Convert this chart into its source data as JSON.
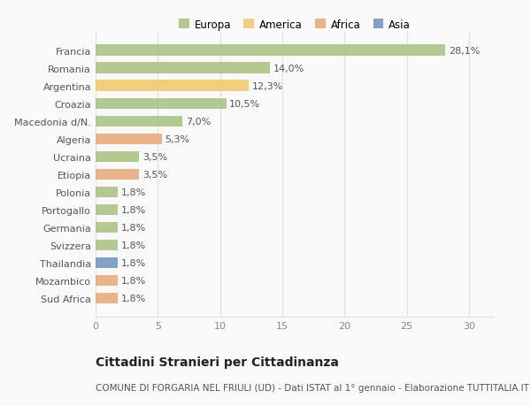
{
  "countries": [
    "Francia",
    "Romania",
    "Argentina",
    "Croazia",
    "Macedonia d/N.",
    "Algeria",
    "Ucraina",
    "Etiopia",
    "Polonia",
    "Portogallo",
    "Germania",
    "Svizzera",
    "Thailandia",
    "Mozambico",
    "Sud Africa"
  ],
  "values": [
    28.1,
    14.0,
    12.3,
    10.5,
    7.0,
    5.3,
    3.5,
    3.5,
    1.8,
    1.8,
    1.8,
    1.8,
    1.8,
    1.8,
    1.8
  ],
  "labels": [
    "28,1%",
    "14,0%",
    "12,3%",
    "10,5%",
    "7,0%",
    "5,3%",
    "3,5%",
    "3,5%",
    "1,8%",
    "1,8%",
    "1,8%",
    "1,8%",
    "1,8%",
    "1,8%",
    "1,8%"
  ],
  "categories": [
    "Europa",
    "America",
    "Africa",
    "Asia"
  ],
  "bar_colors": [
    "#a8c080",
    "#a8c080",
    "#f0c868",
    "#a8c080",
    "#a8c080",
    "#e8a878",
    "#a8c080",
    "#e8a878",
    "#a8c080",
    "#a8c080",
    "#a8c080",
    "#a8c080",
    "#7090c0",
    "#e8a878",
    "#e8a878"
  ],
  "legend_colors": [
    "#a8c080",
    "#f0c868",
    "#e8a878",
    "#7090c0"
  ],
  "xlim": [
    0,
    32
  ],
  "xticks": [
    0,
    5,
    10,
    15,
    20,
    25,
    30
  ],
  "title": "Cittadini Stranieri per Cittadinanza",
  "subtitle": "COMUNE DI FORGARIA NEL FRIULI (UD) - Dati ISTAT al 1° gennaio - Elaborazione TUTTITALIA.IT",
  "bg_color": "#f9f9f9",
  "grid_color": "#e0e0e0",
  "label_fontsize": 8,
  "value_fontsize": 8,
  "title_fontsize": 10,
  "subtitle_fontsize": 7.5,
  "legend_fontsize": 8.5
}
